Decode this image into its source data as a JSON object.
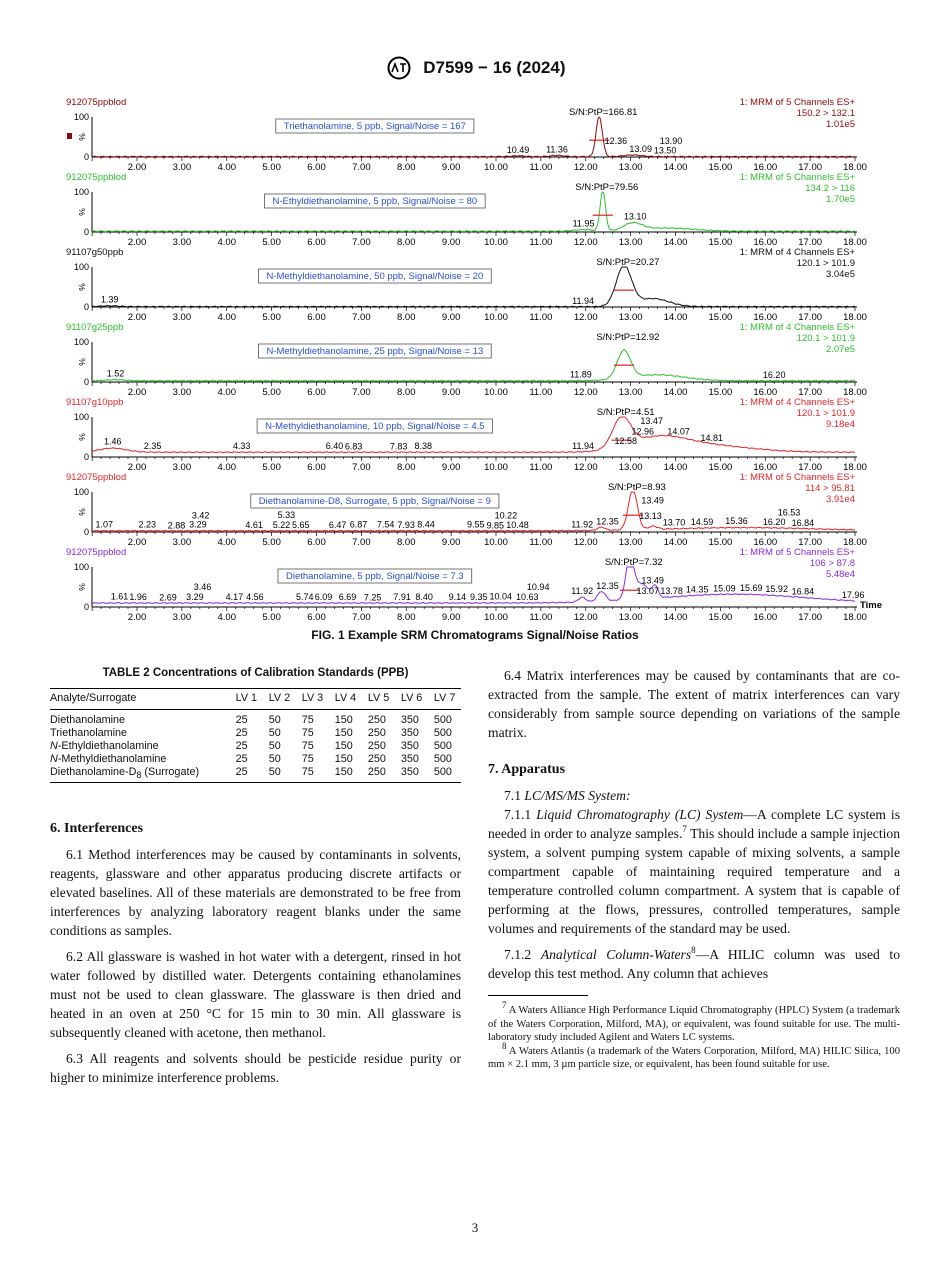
{
  "header": {
    "designation": "D7599 − 16 (2024)",
    "logo": "ASTM"
  },
  "figure": {
    "caption": "FIG. 1 Example SRM Chromatograms Signal/Noise Ratios",
    "x_ticks": [
      "2.00",
      "3.00",
      "4.00",
      "5.00",
      "6.00",
      "7.00",
      "8.00",
      "9.00",
      "10.00",
      "11.00",
      "12.00",
      "13.00",
      "14.00",
      "15.00",
      "16.00",
      "17.00",
      "18.00"
    ],
    "x_axis_label": "Time",
    "y_ticks": [
      "100",
      "0"
    ],
    "y_label": "%",
    "box_text_color": "#2a4fd6",
    "panels": [
      {
        "sample": "912075ppblod",
        "channel": "1: MRM of 5 Channels ES+",
        "transition": "150.2 > 132.1",
        "intensity": "1.01e5",
        "color": "#8b0a0a",
        "box": "Triethanolamine, 5 ppb, Signal/Noise = 167",
        "sn": "S/N:PtP=166.81",
        "main_rt": 12.3,
        "marker": true,
        "peaks": [
          {
            "rt": 12.3,
            "h": 100,
            "w": 0.07
          },
          {
            "rt": 10.49,
            "h": 2,
            "w": 0.15
          },
          {
            "rt": 11.36,
            "h": 3,
            "w": 0.15
          },
          {
            "rt": 13.05,
            "h": 4,
            "w": 0.2
          }
        ],
        "base": 1,
        "labels": [
          "10.49",
          "11.36",
          "12.36",
          "13.09",
          "13.50",
          "13.90"
        ]
      },
      {
        "sample": "912075ppblod",
        "channel": "1: MRM of 5 Channels ES+",
        "transition": "134.2 > 116",
        "intensity": "1.70e5",
        "color": "#2fbf2f",
        "box": "N-Ethyldiethanolamine, 5 ppb, Signal/Noise = 80",
        "sn": "S/N:PtP=79.56",
        "main_rt": 12.38,
        "peaks": [
          {
            "rt": 12.38,
            "h": 100,
            "w": 0.06
          },
          {
            "rt": 13.05,
            "h": 18,
            "w": 0.2
          },
          {
            "rt": 13.8,
            "h": 8,
            "w": 0.6
          },
          {
            "rt": 11.95,
            "h": 4,
            "w": 0.2
          }
        ],
        "base": 2,
        "labels": [
          "11.95",
          "13.10"
        ]
      },
      {
        "sample": "91107g50ppb",
        "channel": "1: MRM of 4 Channels ES+",
        "transition": "120.1 > 101.9",
        "intensity": "3.04e5",
        "color": "#111111",
        "box": "N-Methyldiethanolamine, 50 ppb, Signal/Noise = 20",
        "sn": "S/N:PtP=20.27",
        "main_rt": 12.85,
        "peaks": [
          {
            "rt": 12.85,
            "h": 100,
            "w": 0.17
          },
          {
            "rt": 13.5,
            "h": 20,
            "w": 0.35
          },
          {
            "rt": 1.39,
            "h": 2,
            "w": 0.2
          }
        ],
        "base": 1,
        "labels": [
          "1.39",
          "11.94"
        ]
      },
      {
        "sample": "91107g25ppb",
        "channel": "1: MRM of 4 Channels ES+",
        "transition": "120.1 > 101.9",
        "intensity": "2.07e5",
        "color": "#2fbf2f",
        "box": "N-Methyldiethanolamine, 25 ppb, Signal/Noise = 13",
        "sn": "S/N:PtP=12.92",
        "main_rt": 12.85,
        "peaks": [
          {
            "rt": 12.85,
            "h": 70,
            "w": 0.15
          },
          {
            "rt": 13.6,
            "h": 15,
            "w": 0.6
          },
          {
            "rt": 1.52,
            "h": 3,
            "w": 0.2
          }
        ],
        "base": 3,
        "labels": [
          "1.52",
          "11.89",
          "16.20"
        ]
      },
      {
        "sample": "91107g10ppb",
        "channel": "1: MRM of 4 Channels ES+",
        "transition": "120.1 > 101.9",
        "intensity": "9.18e4",
        "color": "#e8262b",
        "box": "N-Methyldiethanolamine, 10 ppb, Signal/Noise = 4.5",
        "sn": "S/N:PtP=4.51",
        "main_rt": 12.8,
        "peaks": [
          {
            "rt": 12.8,
            "h": 75,
            "w": 0.2
          },
          {
            "rt": 13.6,
            "h": 30,
            "w": 0.6
          },
          {
            "rt": 14.6,
            "h": 18,
            "w": 1.0
          },
          {
            "rt": 1.46,
            "h": 10,
            "w": 0.3
          }
        ],
        "base": 12,
        "labels": [
          "1.46",
          "2.35",
          "4.33",
          "6.40",
          "6.83",
          "7.83",
          "8.38",
          "11.94",
          "12.58",
          "12.96",
          "13.47",
          "14.07",
          "14.81"
        ]
      },
      {
        "sample": "912075ppblod",
        "channel": "1: MRM of 5 Channels ES+",
        "transition": "114 > 95.81",
        "intensity": "3.91e4",
        "color": "#e8262b",
        "box": "Diethanolamine-D8, Surrogate, 5 ppb, Signal/Noise = 9",
        "sn": "S/N:PtP=8.93",
        "main_rt": 13.05,
        "peaks": [
          {
            "rt": 13.05,
            "h": 100,
            "w": 0.1
          },
          {
            "rt": 12.35,
            "h": 8,
            "w": 0.08
          },
          {
            "rt": 13.5,
            "h": 8,
            "w": 0.1
          },
          {
            "rt": 15.5,
            "h": 8,
            "w": 1.6
          }
        ],
        "base": 3,
        "labels": [
          "1.07",
          "2.23",
          "2.88",
          "3.29",
          "3.42",
          "4.61",
          "5.22",
          "5.33",
          "5.65",
          "6.47",
          "6.87",
          "7.54",
          "7.93",
          "8.44",
          "9.55",
          "9.85",
          "10.22",
          "10.48",
          "11.92",
          "12.35",
          "13.13",
          "13.49",
          "13.70",
          "14.59",
          "15.36",
          "16.20",
          "16.53",
          "16.84"
        ]
      },
      {
        "sample": "912075ppblod",
        "channel": "1: MRM of 5 Channels ES+",
        "transition": "106 > 87.8",
        "intensity": "5.48e4",
        "color": "#8a2be2",
        "box": "Diethanolamine, 5 ppb, Signal/Noise = 7.3",
        "sn": "S/N:PtP=7.32",
        "main_rt": 12.98,
        "peaks": [
          {
            "rt": 12.98,
            "h": 95,
            "w": 0.08
          },
          {
            "rt": 13.2,
            "h": 40,
            "w": 0.2
          },
          {
            "rt": 12.35,
            "h": 25,
            "w": 0.09
          },
          {
            "rt": 11.92,
            "h": 12,
            "w": 0.08
          },
          {
            "rt": 13.55,
            "h": 25,
            "w": 0.06
          },
          {
            "rt": 15.3,
            "h": 22,
            "w": 1.6
          }
        ],
        "base": 10,
        "labels": [
          "1.61",
          "1.96",
          "2.69",
          "3.29",
          "3.46",
          "4.17",
          "4.56",
          "5.74",
          "6.09",
          "6.69",
          "7.25",
          "7.91",
          "8.40",
          "9.14",
          "9.35",
          "10.04",
          "10.63",
          "10.94",
          "11.92",
          "12.35",
          "13.07",
          "13.49",
          "13.78",
          "14.35",
          "15.09",
          "15.69",
          "15.92",
          "16.84",
          "17.96"
        ]
      }
    ]
  },
  "table": {
    "caption": "TABLE 2 Concentrations of Calibration Standards (PPB)",
    "headers": [
      "Analyte/Surrogate",
      "LV 1",
      "LV 2",
      "LV 3",
      "LV 4",
      "LV 5",
      "LV 6",
      "LV 7"
    ],
    "rows": [
      {
        "name": "Diethanolamine",
        "sub": "",
        "suffix": "",
        "italic_prefix": "",
        "values": [
          "25",
          "50",
          "75",
          "150",
          "250",
          "350",
          "500"
        ]
      },
      {
        "name": "Triethanolamine",
        "sub": "",
        "suffix": "",
        "italic_prefix": "",
        "values": [
          "25",
          "50",
          "75",
          "150",
          "250",
          "350",
          "500"
        ]
      },
      {
        "name": "-Ethyldiethanolamine",
        "sub": "",
        "suffix": "",
        "italic_prefix": "N",
        "values": [
          "25",
          "50",
          "75",
          "150",
          "250",
          "350",
          "500"
        ]
      },
      {
        "name": "-Methyldiethanolamine",
        "sub": "",
        "suffix": "",
        "italic_prefix": "N",
        "values": [
          "25",
          "50",
          "75",
          "150",
          "250",
          "350",
          "500"
        ]
      },
      {
        "name": "Diethanolamine-D",
        "sub": "8",
        "suffix": " (Surrogate)",
        "italic_prefix": "",
        "values": [
          "25",
          "50",
          "75",
          "150",
          "250",
          "350",
          "500"
        ]
      }
    ]
  },
  "left": {
    "heading": "6.  Interferences",
    "p61": "6.1 Method interferences may be caused by contaminants in solvents, reagents, glassware and other apparatus producing discrete artifacts or elevated baselines. All of these materials are demonstrated to be free from interferences by analyzing laboratory reagent blanks under the same conditions as samples.",
    "p62": "6.2 All glassware is washed in hot water with a detergent, rinsed in hot water followed by distilled water. Detergents containing ethanolamines must not be used to clean glassware. The glassware is then dried and heated in an oven at 250 °C for 15 min to 30 min. All glassware is subsequently cleaned with acetone, then methanol.",
    "p63": "6.3 All reagents and solvents should be pesticide residue purity or higher to minimize interference problems."
  },
  "right": {
    "p64": "6.4 Matrix interferences may be caused by contaminants that are co-extracted from the sample. The extent of matrix interferences can vary considerably from sample source depending on variations of the sample matrix.",
    "heading": "7.  Apparatus",
    "p71_num": "7.1 ",
    "p71_title": "LC/MS/MS System:",
    "p711_num": "7.1.1 ",
    "p711_title": "Liquid Chromatography (LC) System",
    "p711_a": "—A complete LC system is needed in order to analyze samples.",
    "p711_fn": "7",
    "p711_b": " This should include a sample injection system, a solvent pumping system capable of mixing solvents, a sample compartment capable of maintaining required temperature and a temperature controlled column compartment. A system that is capable of performing at the flows, pressures, controlled temperatures, sample volumes and requirements of the standard may be used.",
    "p712_num": "7.1.2 ",
    "p712_title": "Analytical Column-Waters",
    "p712_fn": "8",
    "p712_b": "—A HILIC column was used to develop this test method. Any column that achieves",
    "footnotes": [
      {
        "num": "7",
        "text": " A Waters Alliance High Performance Liquid Chromatography (HPLC) System (a trademark of the Waters Corporation, Milford, MA), or equivalent, was found suitable for use. The multi-laboratory study included Agilent and Waters LC systems."
      },
      {
        "num": "8",
        "text": " A Waters Atlantis (a trademark of the Waters Corporation, Milford, MA) HILIC Silica, 100 mm × 2.1 mm, 3 µm particle size, or equivalent, has been found suitable for use."
      }
    ]
  },
  "page_number": "3"
}
